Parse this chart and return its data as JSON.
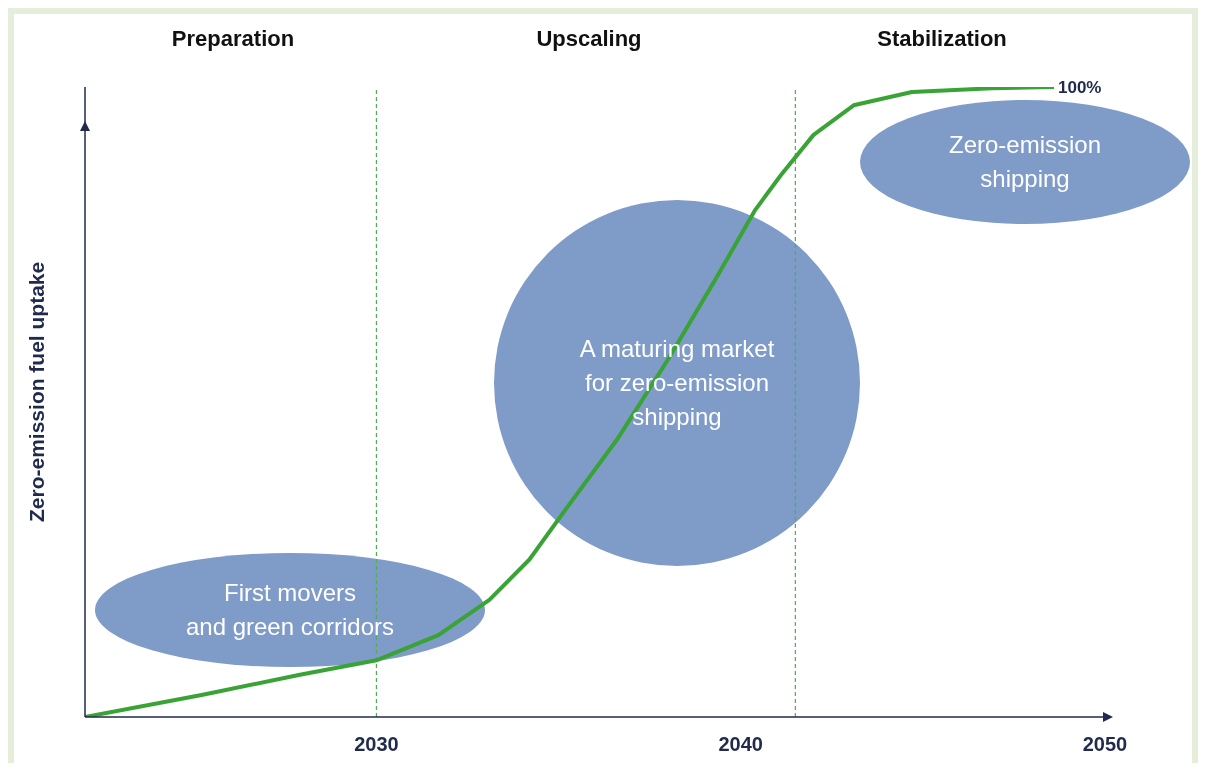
{
  "chart_data": {
    "type": "line",
    "ylabel": "Zero-emission fuel uptake",
    "x": [
      2022,
      2025.2,
      2027.9,
      2030,
      2031.7,
      2033.1,
      2034.2,
      2035.2,
      2036.6,
      2038,
      2039.3,
      2040.4,
      2041.1,
      2042,
      2043.1,
      2044.7,
      2046.9,
      2048.6
    ],
    "series": [
      {
        "color": "#3aa335",
        "values": [
          0,
          3.5,
          6.7,
          9,
          13,
          18.6,
          25,
          33,
          44,
          56.7,
          69.4,
          80.5,
          86,
          92.4,
          97.1,
          99.2,
          99.8,
          100
        ],
        "value_labels": [
          null,
          null,
          null,
          null,
          null,
          null,
          null,
          null,
          null,
          null,
          null,
          null,
          null,
          null,
          null,
          null,
          null,
          "100%"
        ]
      }
    ],
    "xlim": [
      2022,
      2050
    ],
    "xticks": [
      2030,
      2040,
      2050
    ],
    "ylim": [
      0,
      100
    ],
    "tick_labels": "x",
    "ref_lines": [
      {
        "axis": "x",
        "value": 2030,
        "color": "#4caf50",
        "line_style": "dashed"
      },
      {
        "axis": "x",
        "value": 2041.5,
        "color": "#4caf50",
        "line_style": "dashed"
      }
    ],
    "annotations": [
      "Preparation",
      "Upscaling",
      "Stabilization",
      "First movers\nand green corridors",
      "A maturing market\nfor zero-emission\nshipping",
      "Zero-emission\nshipping"
    ],
    "marker": "none",
    "line_style": "solid"
  }
}
